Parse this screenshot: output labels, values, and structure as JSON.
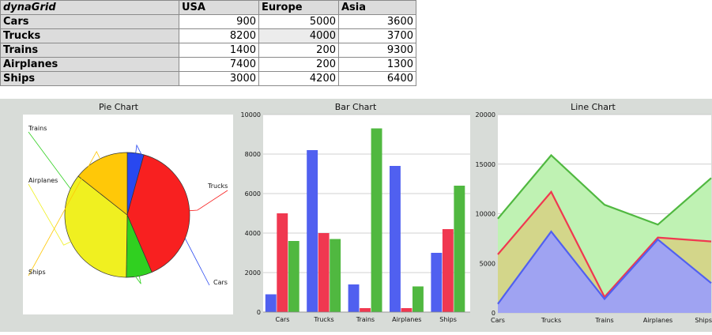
{
  "grid": {
    "title": "dynaGrid",
    "columns": [
      "USA",
      "Europe",
      "Asia"
    ],
    "rows": [
      {
        "label": "Cars",
        "values": [
          "900",
          "5000",
          "3600"
        ]
      },
      {
        "label": "Trucks",
        "values": [
          "8200",
          "4000",
          "3700"
        ]
      },
      {
        "label": "Trains",
        "values": [
          "1400",
          "200",
          "9300"
        ]
      },
      {
        "label": "Airplanes",
        "values": [
          "7400",
          "200",
          "1300"
        ]
      },
      {
        "label": "Ships",
        "values": [
          "3000",
          "4200",
          "6400"
        ]
      }
    ]
  },
  "colors": {
    "usa": "#5060f0",
    "europe": "#f03850",
    "asia": "#50b840",
    "pie": [
      "#2848f0",
      "#f82020",
      "#30d020",
      "#f0f020",
      "#ffc808"
    ]
  },
  "chart_data": [
    {
      "type": "pie",
      "title": "Pie Chart",
      "categories": [
        "Cars",
        "Trucks",
        "Trains",
        "Airplanes",
        "Ships"
      ],
      "values": [
        900,
        8200,
        1400,
        7400,
        3000
      ]
    },
    {
      "type": "bar",
      "title": "Bar Chart",
      "categories": [
        "Cars",
        "Trucks",
        "Trains",
        "Airplanes",
        "Ships"
      ],
      "series": [
        {
          "values": [
            900,
            8200,
            1400,
            7400,
            3000
          ]
        },
        {
          "values": [
            5000,
            4000,
            200,
            200,
            4200
          ]
        },
        {
          "values": [
            3600,
            3700,
            9300,
            1300,
            6400
          ]
        }
      ],
      "ylim": [
        0,
        10000
      ],
      "yticks": [
        "0",
        "2000",
        "4000",
        "6000",
        "8000",
        "10000"
      ],
      "grid": true
    },
    {
      "type": "area",
      "title": "Line Chart",
      "categories": [
        "Cars",
        "Trucks",
        "Trains",
        "Airplanes",
        "Ships"
      ],
      "stacked": true,
      "series": [
        {
          "values": [
            900,
            8200,
            1400,
            7400,
            3000
          ]
        },
        {
          "values": [
            5000,
            4000,
            200,
            200,
            4200
          ]
        },
        {
          "values": [
            3600,
            3700,
            9300,
            1300,
            6400
          ]
        }
      ],
      "ylim": [
        0,
        20000
      ],
      "yticks": [
        "0",
        "5000",
        "10000",
        "15000",
        "20000"
      ],
      "grid": true
    }
  ]
}
